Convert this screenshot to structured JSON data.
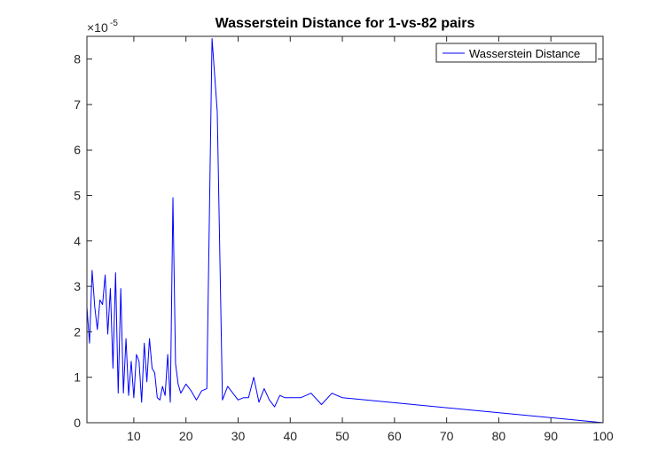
{
  "chart_data": {
    "type": "line",
    "title": "Wasserstein Distance for 1-vs-82 pairs",
    "xlabel": "",
    "ylabel": "",
    "xlim": [
      1,
      100
    ],
    "ylim": [
      0,
      8.5
    ],
    "y_exponent_base": "×10",
    "y_exponent_power": "-5",
    "xticks": [
      10,
      20,
      30,
      40,
      50,
      60,
      70,
      80,
      90,
      100
    ],
    "yticks": [
      0,
      1,
      2,
      3,
      4,
      5,
      6,
      7,
      8
    ],
    "grid": false,
    "legend": {
      "position": "top-right",
      "entries": [
        "Wasserstein Distance"
      ]
    },
    "series": [
      {
        "name": "Wasserstein Distance",
        "color": "#0000ff",
        "x": [
          1,
          1.5,
          2,
          2.5,
          3,
          3.5,
          4,
          4.5,
          5,
          5.5,
          6,
          6.5,
          7,
          7.5,
          8,
          8.5,
          9,
          9.5,
          10,
          10.5,
          11,
          11.5,
          12,
          12.5,
          13,
          13.5,
          14,
          14.5,
          15,
          15.5,
          16,
          16.5,
          17,
          17.5,
          18,
          18.5,
          19,
          20,
          21,
          22,
          23,
          24,
          25,
          26,
          27,
          28,
          29,
          30,
          31,
          32,
          33,
          34,
          35,
          36,
          37,
          38,
          39,
          40,
          41,
          42,
          44,
          46,
          48,
          50,
          100
        ],
        "values": [
          2.55,
          1.75,
          3.35,
          2.55,
          2.05,
          2.7,
          2.6,
          3.25,
          1.95,
          2.95,
          1.2,
          3.3,
          0.65,
          2.95,
          0.65,
          1.85,
          0.6,
          1.35,
          0.55,
          1.5,
          1.35,
          0.45,
          1.75,
          0.9,
          1.85,
          1.2,
          1.1,
          0.55,
          0.5,
          0.8,
          0.6,
          1.5,
          0.45,
          4.95,
          1.3,
          0.85,
          0.65,
          0.85,
          0.7,
          0.5,
          0.7,
          0.75,
          8.45,
          6.85,
          0.5,
          0.8,
          0.65,
          0.5,
          0.55,
          0.55,
          1.0,
          0.45,
          0.75,
          0.5,
          0.35,
          0.6,
          0.55,
          0.55,
          0.55,
          0.55,
          0.65,
          0.4,
          0.65,
          0.55,
          0.0
        ]
      }
    ]
  }
}
